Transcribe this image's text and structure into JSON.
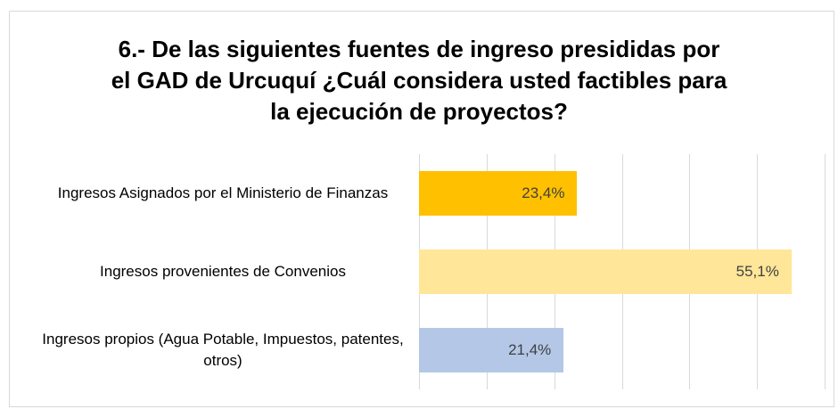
{
  "chart_data": {
    "type": "bar",
    "orientation": "horizontal",
    "title": "6.- De las siguientes fuentes de ingreso presididas por el GAD de Urcuquí ¿Cuál considera usted factibles para la ejecución de proyectos?",
    "categories": [
      "Ingresos Asignados por el Ministerio de Finanzas",
      "Ingresos provenientes de Convenios",
      "Ingresos propios (Agua Potable, Impuestos, patentes, otros)"
    ],
    "values": [
      23.4,
      55.1,
      21.4
    ],
    "value_labels": [
      "23,4%",
      "55,1%",
      "21,4%"
    ],
    "colors": [
      "#ffc000",
      "#ffe699",
      "#b4c7e7"
    ],
    "xlim": [
      0,
      60
    ],
    "xticks": [
      0,
      10,
      20,
      30,
      40,
      50,
      60
    ],
    "grid": true
  }
}
